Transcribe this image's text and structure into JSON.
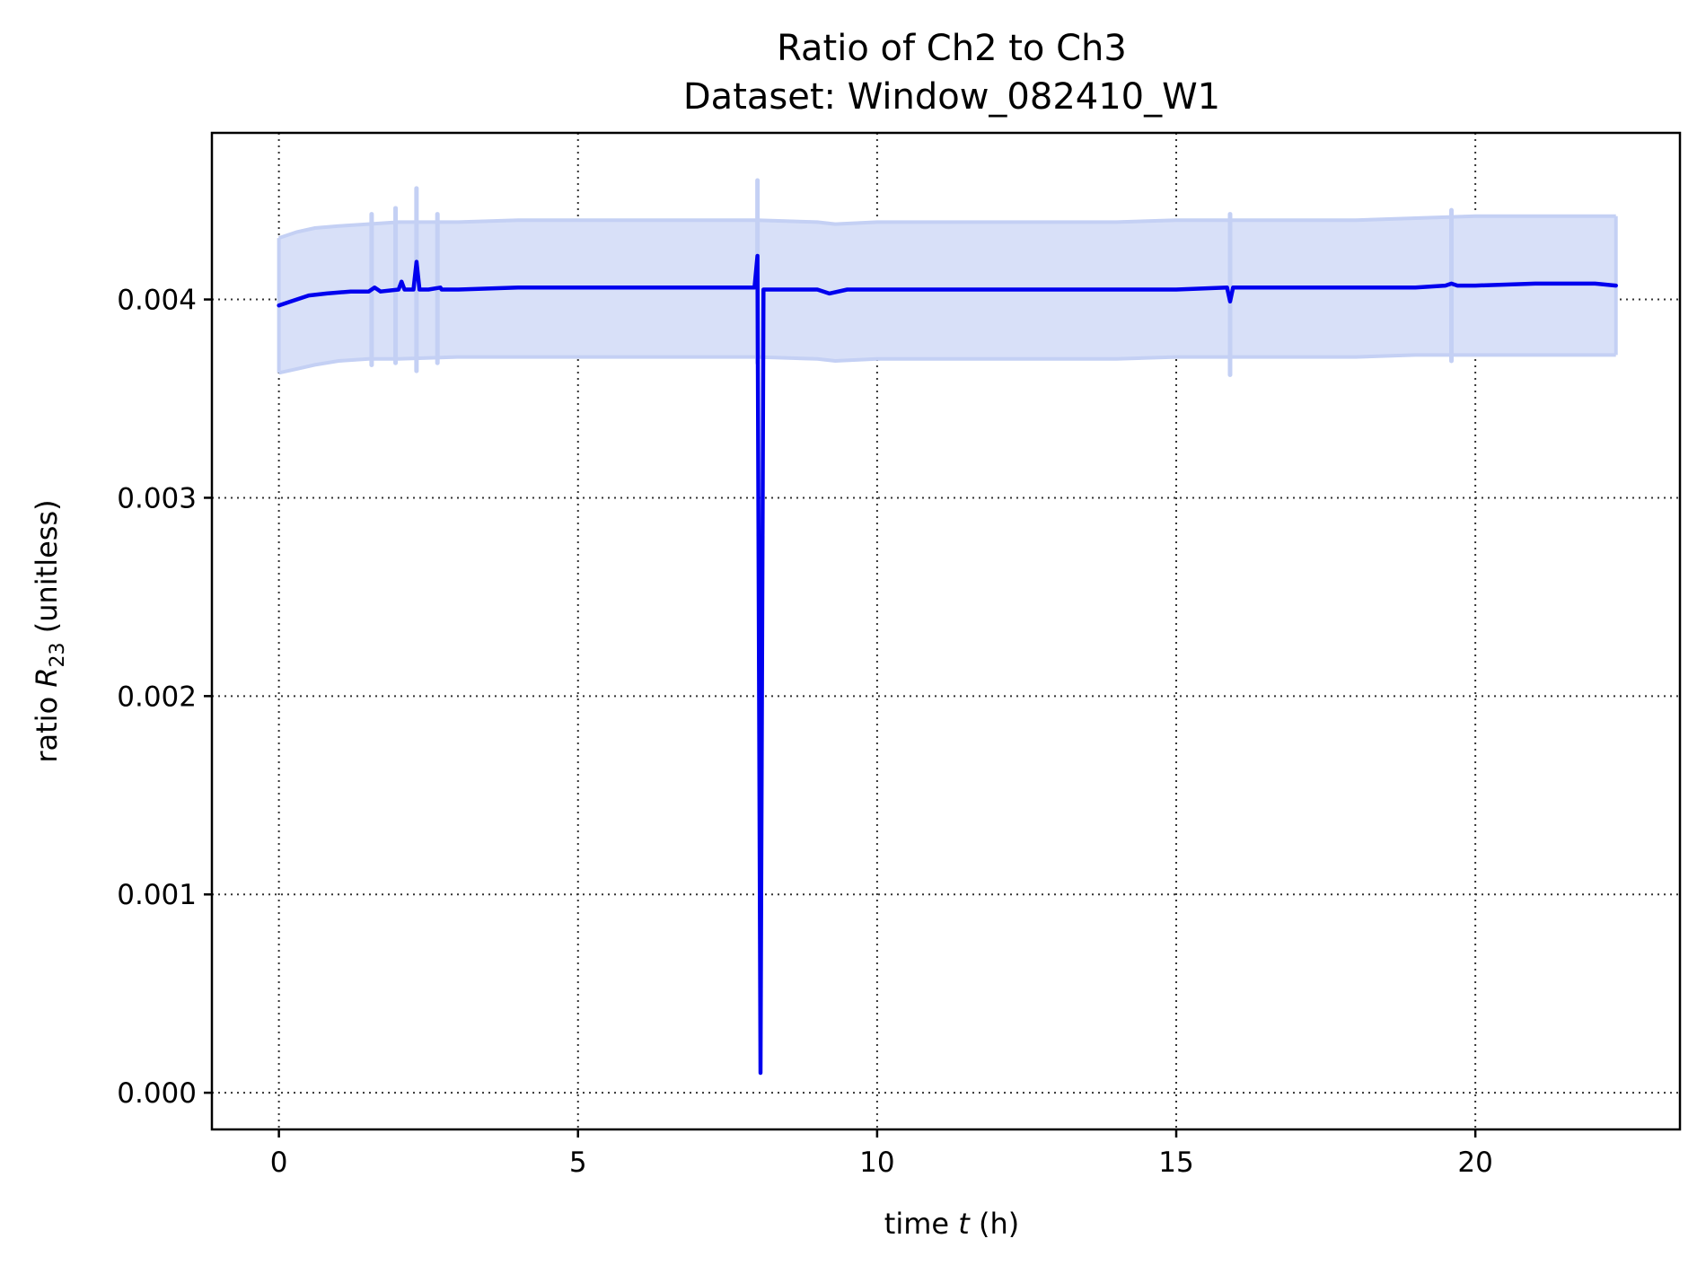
{
  "chart_data": {
    "type": "line",
    "title_line1": "Ratio of Ch2 to Ch3",
    "title_line2": "Dataset: Window_082410_W1",
    "xlabel": "time t (h)",
    "ylabel": "ratio R23 (unitless)",
    "xlim": [
      -1.12,
      23.42
    ],
    "ylim": [
      -0.000185,
      0.00484
    ],
    "xticks": [
      0,
      5,
      10,
      15,
      20
    ],
    "xtick_labels": [
      "0",
      "5",
      "10",
      "15",
      "20"
    ],
    "yticks": [
      0.0,
      0.001,
      0.002,
      0.003,
      0.004
    ],
    "ytick_labels": [
      "0.000",
      "0.001",
      "0.002",
      "0.003",
      "0.004"
    ],
    "grid": true,
    "colors": {
      "line": "#0000ee",
      "band_fill": "#d8e0f8",
      "band_edge": "#c4d0f4"
    },
    "series": [
      {
        "x": [
          0.0,
          0.2,
          0.5,
          0.8,
          1.2,
          1.5,
          1.6,
          1.65,
          1.7,
          2.0,
          2.05,
          2.1,
          2.25,
          2.3,
          2.35,
          2.5,
          2.7,
          2.72,
          3.0,
          4.0,
          5.0,
          6.0,
          7.0,
          7.5,
          7.95,
          8.0,
          8.05,
          8.1,
          8.5,
          9.0,
          9.2,
          9.5,
          10.0,
          11.0,
          12.0,
          13.0,
          13.5,
          14.0,
          15.0,
          15.85,
          15.9,
          15.95,
          16.3,
          17.0,
          18.0,
          19.0,
          19.5,
          19.6,
          19.7,
          20.0,
          21.0,
          22.0,
          22.35
        ],
        "y": [
          0.00397,
          0.00399,
          0.00402,
          0.00403,
          0.00404,
          0.00404,
          0.00406,
          0.00405,
          0.00404,
          0.00405,
          0.00409,
          0.00405,
          0.00405,
          0.00419,
          0.00405,
          0.00405,
          0.00406,
          0.00405,
          0.00405,
          0.00406,
          0.00406,
          0.00406,
          0.00406,
          0.00406,
          0.00406,
          0.00422,
          0.0001,
          0.00405,
          0.00405,
          0.00405,
          0.00403,
          0.00405,
          0.00405,
          0.00405,
          0.00405,
          0.00405,
          0.00405,
          0.00405,
          0.00405,
          0.00406,
          0.00399,
          0.00406,
          0.00406,
          0.00406,
          0.00406,
          0.00406,
          0.00407,
          0.00408,
          0.00407,
          0.00407,
          0.00408,
          0.00408,
          0.00407
        ]
      }
    ],
    "band": {
      "x": [
        0.0,
        0.3,
        0.6,
        1.0,
        1.5,
        2.0,
        3.0,
        4.0,
        5.0,
        6.0,
        7.0,
        8.0,
        9.0,
        9.3,
        10.0,
        11.0,
        12.0,
        13.0,
        14.0,
        15.0,
        16.0,
        17.0,
        18.0,
        19.0,
        20.0,
        21.0,
        22.0,
        22.35
      ],
      "upper": [
        0.00431,
        0.00434,
        0.00436,
        0.00437,
        0.00438,
        0.00439,
        0.00439,
        0.0044,
        0.0044,
        0.0044,
        0.0044,
        0.0044,
        0.00439,
        0.00438,
        0.00439,
        0.00439,
        0.00439,
        0.00439,
        0.00439,
        0.0044,
        0.0044,
        0.0044,
        0.0044,
        0.00441,
        0.00442,
        0.00442,
        0.00442,
        0.00442
      ],
      "lower": [
        0.00363,
        0.00365,
        0.00367,
        0.00369,
        0.0037,
        0.0037,
        0.00371,
        0.00371,
        0.00371,
        0.00371,
        0.00371,
        0.00371,
        0.0037,
        0.00369,
        0.0037,
        0.0037,
        0.0037,
        0.0037,
        0.0037,
        0.00371,
        0.00371,
        0.00371,
        0.00371,
        0.00372,
        0.00372,
        0.00372,
        0.00372,
        0.00372
      ],
      "spikes": [
        {
          "x": 1.55,
          "y1": 0.00367,
          "y2": 0.00443
        },
        {
          "x": 1.95,
          "y1": 0.00368,
          "y2": 0.00446
        },
        {
          "x": 2.3,
          "y1": 0.00364,
          "y2": 0.00456
        },
        {
          "x": 2.65,
          "y1": 0.00368,
          "y2": 0.00443
        },
        {
          "x": 8.0,
          "y1": 0.00368,
          "y2": 0.0046
        },
        {
          "x": 15.9,
          "y1": 0.00362,
          "y2": 0.00443
        },
        {
          "x": 19.6,
          "y1": 0.00369,
          "y2": 0.00445
        }
      ]
    }
  }
}
